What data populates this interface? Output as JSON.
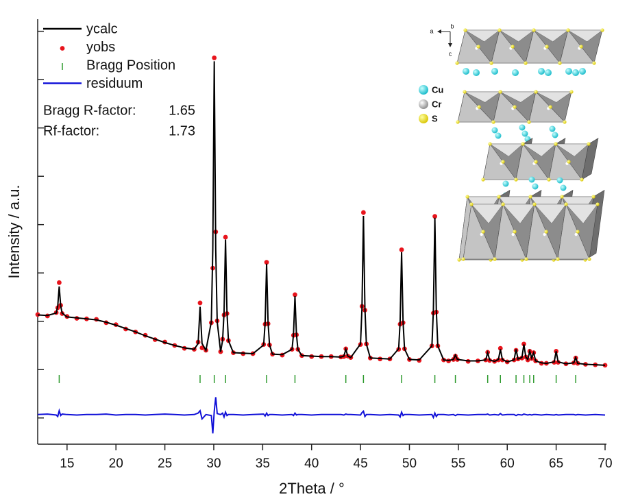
{
  "chart_data": {
    "type": "rietveld",
    "x_label": "2Theta / °",
    "y_label": "Intensity / a.u.",
    "xlim": [
      12,
      70
    ],
    "xticks": [
      15,
      20,
      25,
      30,
      35,
      40,
      45,
      50,
      55,
      60,
      65,
      70
    ],
    "ylim": [
      -0.5,
      8.25
    ],
    "yticks": [
      0,
      1,
      2,
      3,
      4,
      5,
      6,
      7,
      8
    ],
    "show_ytick_labels": false,
    "x": [
      12,
      13,
      13.9,
      14.05,
      14.2,
      14.35,
      14.5,
      15,
      16,
      17,
      18,
      19,
      20,
      21,
      22,
      23,
      24,
      25,
      26,
      27,
      28,
      28.4,
      28.6,
      28.8,
      29.2,
      29.75,
      29.9,
      30.05,
      30.2,
      30.35,
      30.7,
      30.9,
      31.05,
      31.2,
      31.35,
      31.5,
      32,
      33,
      34,
      35.1,
      35.25,
      35.4,
      35.55,
      35.7,
      36,
      37,
      38,
      38.15,
      38.3,
      38.45,
      38.6,
      39,
      40,
      41,
      42,
      43,
      43.3,
      43.5,
      43.7,
      44,
      45,
      45.15,
      45.3,
      45.45,
      45.6,
      46,
      47,
      48,
      48.9,
      49.05,
      49.2,
      49.35,
      49.5,
      50,
      51,
      52.3,
      52.45,
      52.6,
      52.75,
      52.9,
      53.5,
      54,
      54.5,
      54.7,
      54.9,
      56,
      57,
      57.8,
      58,
      58.2,
      58.7,
      59.1,
      59.3,
      59.5,
      60,
      60.7,
      60.9,
      61.1,
      61.5,
      61.7,
      61.9,
      62.1,
      62.3,
      62.5,
      62.7,
      62.9,
      63.5,
      64,
      64.8,
      65,
      65.2,
      66,
      66.8,
      67,
      67.2,
      68,
      69,
      70
    ],
    "series": [
      {
        "name": "ycalc",
        "style": "line",
        "color": "#000000",
        "values": [
          2.13,
          2.12,
          2.17,
          2.32,
          2.72,
          2.32,
          2.17,
          2.09,
          2.07,
          2.05,
          2.03,
          1.98,
          1.92,
          1.85,
          1.78,
          1.7,
          1.63,
          1.56,
          1.5,
          1.45,
          1.42,
          1.54,
          2.3,
          1.54,
          1.4,
          1.99,
          3.49,
          7.38,
          3.49,
          1.99,
          1.37,
          1.6,
          2.18,
          3.69,
          2.18,
          1.6,
          1.35,
          1.34,
          1.33,
          1.51,
          1.97,
          3.19,
          1.97,
          1.51,
          1.32,
          1.31,
          1.42,
          1.73,
          2.52,
          1.73,
          1.42,
          1.29,
          1.28,
          1.27,
          1.27,
          1.26,
          1.28,
          1.42,
          1.28,
          1.25,
          1.53,
          2.27,
          4.18,
          2.27,
          1.53,
          1.24,
          1.23,
          1.22,
          1.43,
          1.99,
          3.43,
          1.99,
          1.43,
          1.21,
          1.2,
          1.49,
          2.23,
          4.14,
          2.23,
          1.49,
          1.2,
          1.19,
          1.21,
          1.3,
          1.21,
          1.18,
          1.18,
          1.2,
          1.35,
          1.2,
          1.17,
          1.21,
          1.42,
          1.21,
          1.16,
          1.2,
          1.42,
          1.22,
          1.25,
          1.52,
          1.26,
          1.21,
          1.38,
          1.24,
          1.35,
          1.18,
          1.14,
          1.13,
          1.16,
          1.38,
          1.16,
          1.12,
          1.14,
          1.25,
          1.13,
          1.11,
          1.1,
          1.09
        ]
      },
      {
        "name": "yobs",
        "style": "dots",
        "color": "#e8141c",
        "values": [
          2.14,
          2.11,
          2.18,
          2.28,
          2.8,
          2.33,
          2.16,
          2.1,
          2.06,
          2.05,
          2.04,
          1.97,
          1.93,
          1.84,
          1.78,
          1.71,
          1.62,
          1.57,
          1.5,
          1.44,
          1.42,
          1.57,
          2.38,
          1.45,
          1.4,
          1.97,
          3.1,
          7.45,
          3.85,
          2.01,
          1.37,
          1.63,
          2.13,
          3.74,
          2.16,
          1.6,
          1.35,
          1.33,
          1.33,
          1.52,
          1.94,
          3.22,
          1.95,
          1.51,
          1.32,
          1.3,
          1.42,
          1.71,
          2.55,
          1.72,
          1.42,
          1.29,
          1.27,
          1.27,
          1.27,
          1.26,
          1.27,
          1.43,
          1.28,
          1.25,
          1.52,
          2.31,
          4.25,
          2.23,
          1.53,
          1.24,
          1.22,
          1.22,
          1.42,
          1.94,
          3.48,
          1.97,
          1.43,
          1.21,
          1.19,
          1.49,
          2.17,
          4.17,
          2.19,
          1.49,
          1.2,
          1.18,
          1.21,
          1.28,
          1.21,
          1.17,
          1.18,
          1.2,
          1.36,
          1.19,
          1.17,
          1.2,
          1.44,
          1.2,
          1.16,
          1.2,
          1.4,
          1.22,
          1.24,
          1.53,
          1.26,
          1.2,
          1.38,
          1.23,
          1.35,
          1.18,
          1.13,
          1.13,
          1.15,
          1.38,
          1.15,
          1.12,
          1.14,
          1.24,
          1.13,
          1.11,
          1.1,
          1.09
        ]
      },
      {
        "name": "Bragg Position",
        "style": "ticks",
        "color": "#2e9a2e",
        "x": [
          14.2,
          28.6,
          30.05,
          31.2,
          35.4,
          38.3,
          43.5,
          45.3,
          49.2,
          52.6,
          54.7,
          58.0,
          59.3,
          60.9,
          61.7,
          62.3,
          62.7,
          65.0,
          67.0
        ]
      },
      {
        "name": "residuum",
        "style": "line",
        "color": "#1010d8",
        "values": [
          0.07,
          0.08,
          0.06,
          0.03,
          0.15,
          0.05,
          0.08,
          0.07,
          0.06,
          0.07,
          0.07,
          0.08,
          0.06,
          0.07,
          0.07,
          0.06,
          0.07,
          0.08,
          0.07,
          0.06,
          0.07,
          0.1,
          0.15,
          -0.02,
          0.07,
          0.05,
          -0.32,
          0.14,
          0.43,
          0.09,
          0.07,
          0.1,
          0.02,
          0.12,
          0.05,
          0.07,
          0.07,
          0.06,
          0.07,
          0.08,
          0.04,
          0.1,
          0.05,
          0.07,
          0.07,
          0.06,
          0.07,
          0.05,
          0.1,
          0.06,
          0.07,
          0.07,
          0.06,
          0.07,
          0.07,
          0.07,
          0.06,
          0.08,
          0.07,
          0.07,
          0.06,
          0.11,
          0.14,
          0.03,
          0.07,
          0.07,
          0.06,
          0.07,
          0.06,
          0.02,
          0.12,
          0.05,
          0.07,
          0.07,
          0.06,
          0.07,
          0.01,
          0.1,
          0.03,
          0.07,
          0.07,
          0.06,
          0.07,
          0.05,
          0.07,
          0.06,
          0.07,
          0.07,
          0.08,
          0.06,
          0.07,
          0.06,
          0.09,
          0.06,
          0.07,
          0.07,
          0.05,
          0.07,
          0.06,
          0.08,
          0.07,
          0.06,
          0.07,
          0.06,
          0.07,
          0.07,
          0.06,
          0.07,
          0.06,
          0.07,
          0.06,
          0.07,
          0.07,
          0.06,
          0.07,
          0.06,
          0.07,
          0.06
        ]
      }
    ],
    "annotations": [
      {
        "label": "Bragg R-factor:",
        "value": 1.65
      },
      {
        "label": "Rf-factor:",
        "value": 1.73
      }
    ],
    "inset_legend": [
      "Cu",
      "Cr",
      "S"
    ],
    "inset_axes": [
      "a",
      "b",
      "c"
    ]
  }
}
